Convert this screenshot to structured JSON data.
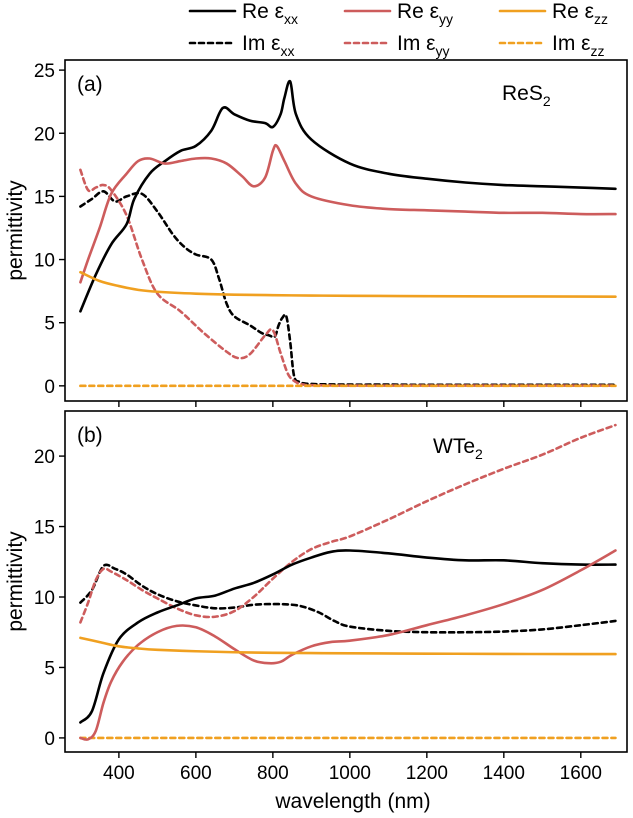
{
  "chart_data": {
    "type": "line",
    "xlabel": "wavelength (nm)",
    "xlim": [
      260,
      1720
    ],
    "xticks": [
      400,
      600,
      800,
      1000,
      1200,
      1400,
      1600
    ],
    "legend": {
      "placement": "top",
      "entries": [
        {
          "prefix": "Re ε",
          "sub": "xx",
          "color": "#000000",
          "style": "solid"
        },
        {
          "prefix": "Re ε",
          "sub": "yy",
          "color": "#cd5c5c",
          "style": "solid"
        },
        {
          "prefix": "Re ε",
          "sub": "zz",
          "color": "#f0a020",
          "style": "solid"
        },
        {
          "prefix": "Im ε",
          "sub": "xx",
          "color": "#000000",
          "style": "dashed"
        },
        {
          "prefix": "Im ε",
          "sub": "yy",
          "color": "#cd5c5c",
          "style": "dashed"
        },
        {
          "prefix": "Im ε",
          "sub": "zz",
          "color": "#f0a020",
          "style": "dashed"
        }
      ]
    },
    "panels": [
      {
        "letter": "(a)",
        "material": {
          "base": "ReS",
          "sub": "2"
        },
        "ylabel": "permittivity",
        "ylim": [
          -1.2,
          25.8
        ],
        "yticks": [
          0,
          5,
          10,
          15,
          20,
          25
        ],
        "series": [
          {
            "name": "Re εxx",
            "color": "#000000",
            "style": "solid",
            "x": [
              300,
              340,
              380,
              420,
              440,
              480,
              520,
              560,
              600,
              640,
              670,
              700,
              740,
              780,
              800,
              820,
              830,
              845,
              860,
              900,
              1000,
              1100,
              1200,
              1300,
              1400,
              1500,
              1600,
              1690
            ],
            "y": [
              5.9,
              8.8,
              11.2,
              12.8,
              14.8,
              16.8,
              17.8,
              18.6,
              19.0,
              20.2,
              22.0,
              21.5,
              21.0,
              20.8,
              20.5,
              21.5,
              22.8,
              24.1,
              21.5,
              19.5,
              17.6,
              16.8,
              16.4,
              16.1,
              15.9,
              15.8,
              15.7,
              15.6
            ]
          },
          {
            "name": "Re εyy",
            "color": "#cd5c5c",
            "style": "solid",
            "x": [
              300,
              320,
              350,
              380,
              420,
              450,
              480,
              520,
              560,
              600,
              640,
              680,
              720,
              750,
              780,
              800,
              810,
              830,
              860,
              900,
              1000,
              1100,
              1200,
              1300,
              1400,
              1500,
              1600,
              1690
            ],
            "y": [
              8.2,
              10.0,
              12.5,
              15.2,
              16.8,
              17.8,
              18.0,
              17.6,
              17.8,
              18.0,
              18.0,
              17.6,
              16.6,
              15.8,
              16.5,
              18.6,
              19.0,
              17.8,
              16.0,
              15.0,
              14.3,
              14.0,
              13.9,
              13.8,
              13.7,
              13.7,
              13.6,
              13.6
            ]
          },
          {
            "name": "Re εzz",
            "color": "#f0a020",
            "style": "solid",
            "x": [
              300,
              350,
              400,
              450,
              500,
              600,
              700,
              800,
              900,
              1000,
              1200,
              1400,
              1600,
              1690
            ],
            "y": [
              9.0,
              8.3,
              7.9,
              7.6,
              7.45,
              7.3,
              7.22,
              7.18,
              7.15,
              7.13,
              7.1,
              7.08,
              7.07,
              7.06
            ]
          },
          {
            "name": "Im εxx",
            "color": "#000000",
            "style": "dashed",
            "x": [
              300,
              330,
              360,
              390,
              420,
              460,
              500,
              540,
              570,
              600,
              640,
              660,
              680,
              700,
              740,
              770,
              790,
              805,
              815,
              825,
              835,
              845,
              855,
              870,
              900,
              1000,
              1100,
              1200,
              1400,
              1600,
              1690
            ],
            "y": [
              14.2,
              14.8,
              15.4,
              14.6,
              15.0,
              15.2,
              13.8,
              12.0,
              11.0,
              10.4,
              10.0,
              8.5,
              6.5,
              5.5,
              4.8,
              4.2,
              4.0,
              3.9,
              4.8,
              5.4,
              5.5,
              3.5,
              0.8,
              0.3,
              0.15,
              0.1,
              0.1,
              0.08,
              0.08,
              0.08,
              0.08
            ]
          },
          {
            "name": "Im εyy",
            "color": "#cd5c5c",
            "style": "dashed",
            "x": [
              300,
              320,
              340,
              360,
              380,
              420,
              460,
              500,
              560,
              620,
              680,
              710,
              740,
              780,
              800,
              820,
              840,
              860,
              880,
              900,
              1000,
              1200,
              1400,
              1600,
              1690
            ],
            "y": [
              17.1,
              15.5,
              15.7,
              15.9,
              15.5,
              13.5,
              10.0,
              7.3,
              5.9,
              4.2,
              2.7,
              2.2,
              2.5,
              4.0,
              4.4,
              2.6,
              0.9,
              0.3,
              0.1,
              0.05,
              0.02,
              0.02,
              0.02,
              0.02,
              0.02
            ]
          },
          {
            "name": "Im εzz",
            "color": "#f0a020",
            "style": "dashed",
            "x": [
              300,
              1690
            ],
            "y": [
              0.0,
              0.0
            ]
          }
        ]
      },
      {
        "letter": "(b)",
        "material": {
          "base": "WTe",
          "sub": "2"
        },
        "ylabel": "permittivity",
        "ylim": [
          -1.0,
          23.2
        ],
        "yticks": [
          0,
          5,
          10,
          15,
          20
        ],
        "series": [
          {
            "name": "Re εxx",
            "color": "#000000",
            "style": "solid",
            "x": [
              300,
              330,
              360,
              400,
              450,
              500,
              550,
              600,
              650,
              700,
              750,
              800,
              850,
              900,
              950,
              1000,
              1100,
              1200,
              1300,
              1400,
              1500,
              1600,
              1690
            ],
            "y": [
              1.1,
              1.9,
              4.6,
              7.0,
              8.2,
              8.9,
              9.4,
              9.9,
              10.1,
              10.6,
              11.0,
              11.6,
              12.3,
              12.8,
              13.2,
              13.3,
              13.1,
              12.8,
              12.6,
              12.6,
              12.4,
              12.3,
              12.3
            ]
          },
          {
            "name": "Re εyy",
            "color": "#cd5c5c",
            "style": "solid",
            "x": [
              300,
              320,
              340,
              360,
              380,
              410,
              450,
              500,
              550,
              600,
              650,
              700,
              750,
              790,
              820,
              850,
              900,
              950,
              1000,
              1100,
              1200,
              1300,
              1400,
              1500,
              1600,
              1690
            ],
            "y": [
              0.0,
              -0.1,
              0.5,
              2.5,
              4.0,
              5.4,
              6.6,
              7.5,
              7.95,
              7.85,
              7.2,
              6.3,
              5.5,
              5.3,
              5.4,
              5.9,
              6.5,
              6.8,
              6.9,
              7.3,
              8.0,
              8.7,
              9.5,
              10.5,
              11.9,
              13.3
            ]
          },
          {
            "name": "Re εzz",
            "color": "#f0a020",
            "style": "solid",
            "x": [
              300,
              350,
              400,
              450,
              500,
              600,
              700,
              800,
              900,
              1000,
              1200,
              1400,
              1600,
              1690
            ],
            "y": [
              7.1,
              6.8,
              6.5,
              6.35,
              6.25,
              6.15,
              6.08,
              6.04,
              6.02,
              6.0,
              5.98,
              5.96,
              5.95,
              5.95
            ]
          },
          {
            "name": "Im εxx",
            "color": "#000000",
            "style": "dashed",
            "x": [
              300,
              330,
              360,
              390,
              420,
              460,
              500,
              550,
              600,
              650,
              700,
              750,
              800,
              850,
              880,
              920,
              960,
              1000,
              1100,
              1200,
              1300,
              1400,
              1500,
              1600,
              1690
            ],
            "y": [
              9.6,
              10.5,
              12.2,
              12.0,
              11.6,
              10.8,
              10.2,
              9.7,
              9.4,
              9.2,
              9.25,
              9.45,
              9.5,
              9.45,
              9.3,
              8.9,
              8.3,
              7.9,
              7.6,
              7.5,
              7.5,
              7.55,
              7.7,
              8.0,
              8.3
            ]
          },
          {
            "name": "Im εyy",
            "color": "#cd5c5c",
            "style": "dashed",
            "x": [
              300,
              320,
              340,
              360,
              380,
              420,
              460,
              500,
              550,
              600,
              650,
              700,
              750,
              800,
              850,
              900,
              950,
              1000,
              1100,
              1200,
              1300,
              1400,
              1500,
              1600,
              1690
            ],
            "y": [
              8.2,
              9.6,
              11.2,
              12.0,
              11.8,
              11.2,
              10.5,
              9.9,
              9.2,
              8.7,
              8.6,
              9.0,
              10.0,
              11.3,
              12.5,
              13.4,
              13.9,
              14.3,
              15.5,
              16.8,
              18.0,
              19.1,
              20.1,
              21.3,
              22.2
            ]
          },
          {
            "name": "Im εzz",
            "color": "#f0a020",
            "style": "dashed",
            "x": [
              300,
              1690
            ],
            "y": [
              0.0,
              0.0
            ]
          }
        ]
      }
    ]
  }
}
